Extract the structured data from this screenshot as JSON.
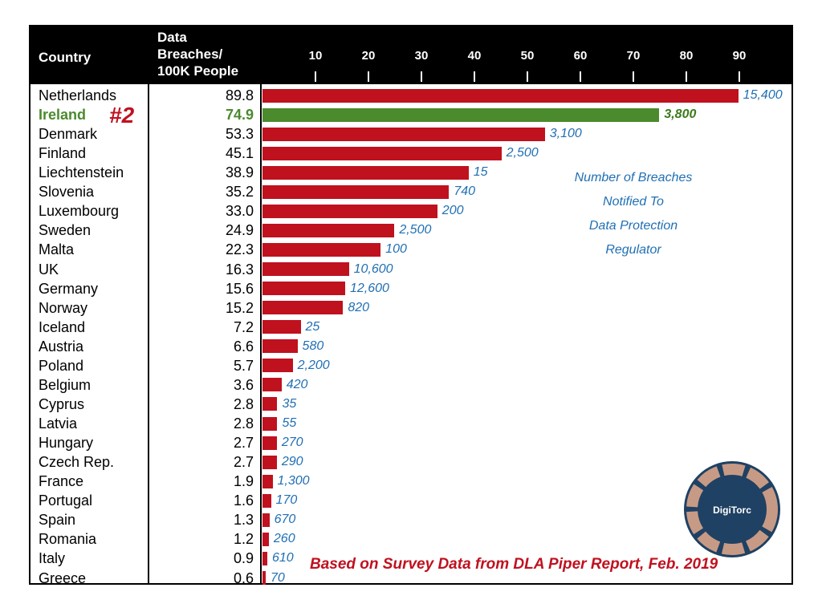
{
  "chart_data": {
    "type": "bar",
    "orientation": "horizontal",
    "columns": {
      "country": "Country",
      "rate_line1": "Data",
      "rate_line2": "Breaches/",
      "rate_line3": "100K People"
    },
    "x_ticks": [
      "10",
      "20",
      "30",
      "40",
      "50",
      "60",
      "70",
      "80",
      "90"
    ],
    "xlim": [
      0,
      91
    ],
    "grid": false,
    "highlight": {
      "country": "Ireland",
      "badge": "#2",
      "color": "#4b8a2d"
    },
    "bar_color": "#c0111f",
    "label_color": "#1f6fb4",
    "rows": [
      {
        "country": "Netherlands",
        "rate": "89.8",
        "value": 89.8,
        "breaches": "15,400"
      },
      {
        "country": "Ireland",
        "rate": "74.9",
        "value": 74.9,
        "breaches": "3,800"
      },
      {
        "country": "Denmark",
        "rate": "53.3",
        "value": 53.3,
        "breaches": "3,100"
      },
      {
        "country": "Finland",
        "rate": "45.1",
        "value": 45.1,
        "breaches": "2,500"
      },
      {
        "country": "Liechtenstein",
        "rate": "38.9",
        "value": 38.9,
        "breaches": "15"
      },
      {
        "country": "Slovenia",
        "rate": "35.2",
        "value": 35.2,
        "breaches": "740"
      },
      {
        "country": "Luxembourg",
        "rate": "33.0",
        "value": 33.0,
        "breaches": "200"
      },
      {
        "country": "Sweden",
        "rate": "24.9",
        "value": 24.9,
        "breaches": "2,500"
      },
      {
        "country": "Malta",
        "rate": "22.3",
        "value": 22.3,
        "breaches": "100"
      },
      {
        "country": "UK",
        "rate": "16.3",
        "value": 16.3,
        "breaches": "10,600"
      },
      {
        "country": "Germany",
        "rate": "15.6",
        "value": 15.6,
        "breaches": "12,600"
      },
      {
        "country": "Norway",
        "rate": "15.2",
        "value": 15.2,
        "breaches": "820"
      },
      {
        "country": "Iceland",
        "rate": "7.2",
        "value": 7.2,
        "breaches": "25"
      },
      {
        "country": "Austria",
        "rate": "6.6",
        "value": 6.6,
        "breaches": "580"
      },
      {
        "country": "Poland",
        "rate": "5.7",
        "value": 5.7,
        "breaches": "2,200"
      },
      {
        "country": "Belgium",
        "rate": "3.6",
        "value": 3.6,
        "breaches": "420"
      },
      {
        "country": "Cyprus",
        "rate": "2.8",
        "value": 2.8,
        "breaches": "35"
      },
      {
        "country": "Latvia",
        "rate": "2.8",
        "value": 2.8,
        "breaches": "55"
      },
      {
        "country": "Hungary",
        "rate": "2.7",
        "value": 2.7,
        "breaches": "270"
      },
      {
        "country": "Czech Rep.",
        "rate": "2.7",
        "value": 2.7,
        "breaches": "290"
      },
      {
        "country": "France",
        "rate": "1.9",
        "value": 1.9,
        "breaches": "1,300"
      },
      {
        "country": "Portugal",
        "rate": "1.6",
        "value": 1.6,
        "breaches": "170"
      },
      {
        "country": "Spain",
        "rate": "1.3",
        "value": 1.3,
        "breaches": "670"
      },
      {
        "country": "Romania",
        "rate": "1.2",
        "value": 1.2,
        "breaches": "260"
      },
      {
        "country": "Italy",
        "rate": "0.9",
        "value": 0.9,
        "breaches": "610"
      },
      {
        "country": "Greece",
        "rate": "0.6",
        "value": 0.6,
        "breaches": "70"
      }
    ],
    "annotation": [
      "Number of Breaches",
      "Notified To",
      "Data Protection",
      "Regulator"
    ],
    "source": "Based on Survey Data from DLA Piper Report, Feb. 2019"
  },
  "logo": {
    "text": "DigiTorc",
    "icon": "digitorc-logo-icon"
  }
}
